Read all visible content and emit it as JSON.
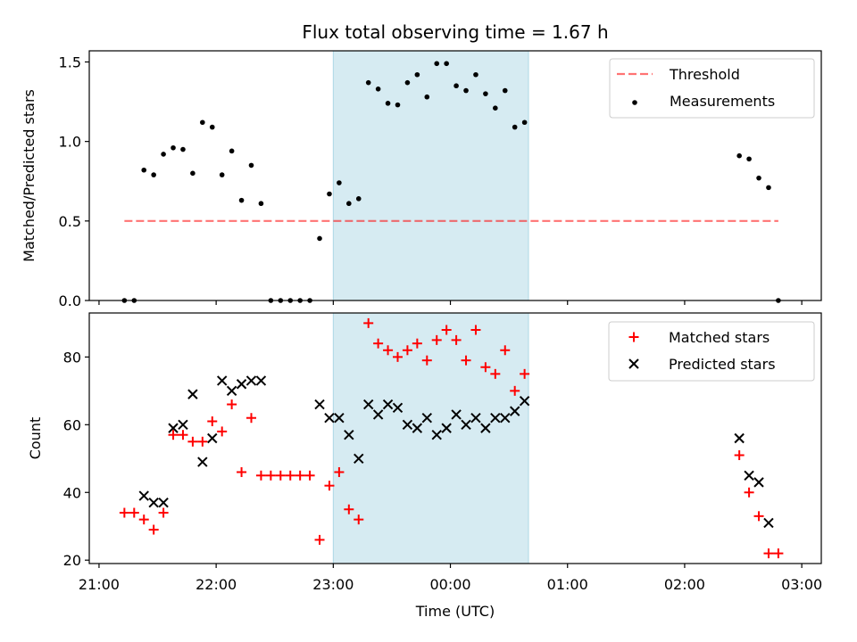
{
  "chart_data": {
    "title": "Flux total observing time = 1.67 h",
    "xlabel": "Time (UTC)",
    "x_tick_labels": [
      "21:00",
      "22:00",
      "23:00",
      "00:00",
      "01:00",
      "02:00",
      "03:00"
    ],
    "x_tick_minutes": [
      0,
      60,
      120,
      180,
      240,
      300,
      360
    ],
    "xlim_minutes": [
      -5,
      370
    ],
    "shaded_span_minutes": [
      120,
      220
    ],
    "shade_color": "#add8e6",
    "panels": [
      {
        "type": "scatter",
        "ylabel": "Matched/Predicted stars",
        "ylim": [
          0,
          1.57
        ],
        "y_ticks": [
          "0.0",
          "0.5",
          "1.0",
          "1.5"
        ],
        "y_tick_values": [
          0,
          0.5,
          1.0,
          1.5
        ],
        "legend_position": "upper-right",
        "threshold": {
          "name": "Threshold",
          "value": 0.5,
          "x_range_minutes": [
            13,
            348
          ],
          "color": "#ff0000",
          "style": "dashed"
        },
        "series": [
          {
            "name": "Measurements",
            "marker": "dot",
            "color": "#000000",
            "x_minutes": [
              13,
              18,
              23,
              28,
              33,
              38,
              43,
              48,
              53,
              58,
              63,
              68,
              73,
              78,
              83,
              88,
              93,
              98,
              103,
              108,
              113,
              118,
              123,
              128,
              133,
              138,
              143,
              148,
              153,
              158,
              163,
              168,
              173,
              178,
              183,
              188,
              193,
              198,
              203,
              208,
              213,
              218,
              328,
              333,
              338,
              343,
              348
            ],
            "values": [
              0,
              0,
              0.82,
              0.79,
              0.92,
              0.96,
              0.95,
              0.8,
              1.12,
              1.09,
              0.79,
              0.94,
              0.63,
              0.85,
              0.61,
              0,
              0,
              0,
              0,
              0,
              0.39,
              0.67,
              0.74,
              0.61,
              0.64,
              1.37,
              1.33,
              1.24,
              1.23,
              1.37,
              1.42,
              1.28,
              1.49,
              1.49,
              1.35,
              1.32,
              1.42,
              1.3,
              1.21,
              1.32,
              1.09,
              1.12,
              0.91,
              0.89,
              0.77,
              0.71,
              0
            ]
          }
        ]
      },
      {
        "type": "scatter",
        "ylabel": "Count",
        "ylim": [
          19,
          93
        ],
        "y_ticks": [
          "20",
          "40",
          "60",
          "80"
        ],
        "y_tick_values": [
          20,
          40,
          60,
          80
        ],
        "legend_position": "upper-right",
        "series": [
          {
            "name": "Matched stars",
            "marker": "plus",
            "color": "#ff0000",
            "x_minutes": [
              13,
              18,
              23,
              28,
              33,
              38,
              43,
              48,
              53,
              58,
              63,
              68,
              73,
              78,
              83,
              88,
              93,
              98,
              103,
              108,
              113,
              118,
              123,
              128,
              133,
              138,
              143,
              148,
              153,
              158,
              163,
              168,
              173,
              178,
              183,
              188,
              193,
              198,
              203,
              208,
              213,
              218,
              328,
              333,
              338,
              343,
              348
            ],
            "values": [
              34,
              34,
              32,
              29,
              34,
              57,
              57,
              55,
              55,
              61,
              58,
              66,
              46,
              62,
              45,
              45,
              45,
              45,
              45,
              45,
              26,
              42,
              46,
              35,
              32,
              90,
              84,
              82,
              80,
              82,
              84,
              79,
              85,
              88,
              85,
              79,
              88,
              77,
              75,
              82,
              70,
              75,
              51,
              40,
              33,
              22,
              22
            ]
          },
          {
            "name": "Predicted stars",
            "marker": "x",
            "color": "#000000",
            "x_minutes": [
              23,
              28,
              33,
              38,
              43,
              48,
              53,
              58,
              63,
              68,
              73,
              78,
              83,
              113,
              118,
              123,
              128,
              133,
              138,
              143,
              148,
              153,
              158,
              163,
              168,
              173,
              178,
              183,
              188,
              193,
              198,
              203,
              208,
              213,
              218,
              328,
              333,
              338,
              343
            ],
            "values": [
              39,
              37,
              37,
              59,
              60,
              69,
              49,
              56,
              73,
              70,
              72,
              73,
              73,
              66,
              62,
              62,
              57,
              50,
              66,
              63,
              66,
              65,
              60,
              59,
              62,
              57,
              59,
              63,
              60,
              62,
              59,
              62,
              62,
              64,
              67,
              56,
              45,
              43,
              31
            ]
          }
        ]
      }
    ]
  }
}
